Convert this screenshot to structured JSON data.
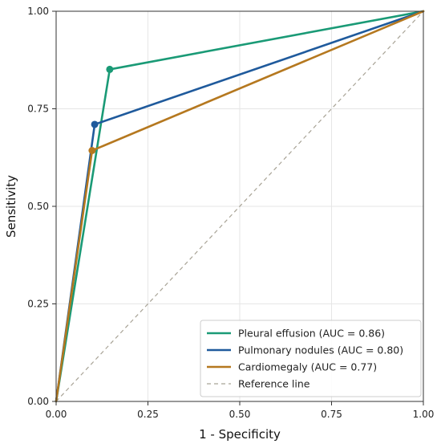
{
  "chart_data": {
    "type": "line",
    "xlabel": "1 - Specificity",
    "ylabel": "Sensitivity",
    "xlim": [
      0,
      1
    ],
    "ylim": [
      0,
      1
    ],
    "grid": true,
    "legend_position": "bottom-right",
    "x_ticks": [
      "0.00",
      "0.25",
      "0.50",
      "0.75",
      "1.00"
    ],
    "y_ticks": [
      "0.00",
      "0.25",
      "0.50",
      "0.75",
      "1.00"
    ],
    "series": [
      {
        "name": "Pleural effusion (AUC = 0.86)",
        "color": "#1a9a76",
        "points": [
          [
            0,
            0
          ],
          [
            0.146,
            0.851
          ],
          [
            1,
            1
          ]
        ],
        "operating_point": [
          0.146,
          0.851
        ]
      },
      {
        "name": "Pulmonary nodules (AUC = 0.80)",
        "color": "#1f5a9c",
        "points": [
          [
            0,
            0
          ],
          [
            0.105,
            0.71
          ],
          [
            1,
            1
          ]
        ],
        "operating_point": [
          0.105,
          0.71
        ]
      },
      {
        "name": "Cardiomegaly (AUC = 0.77)",
        "color": "#b5781f",
        "points": [
          [
            0,
            0
          ],
          [
            0.098,
            0.643
          ],
          [
            1,
            1
          ]
        ],
        "operating_point": [
          0.098,
          0.643
        ]
      }
    ],
    "reference_line": {
      "name": "Reference line",
      "color": "#a8a396",
      "points": [
        [
          0,
          0
        ],
        [
          1,
          1
        ]
      ],
      "style": "dashed"
    }
  }
}
